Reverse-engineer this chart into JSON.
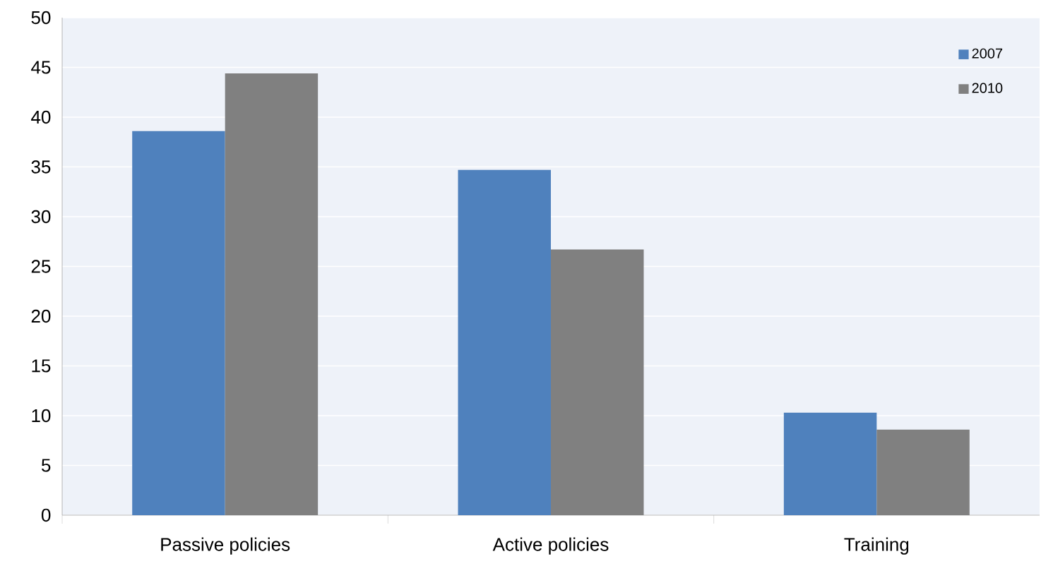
{
  "chart_data": {
    "type": "bar",
    "categories": [
      "Passive policies",
      "Active policies",
      "Training"
    ],
    "series": [
      {
        "name": "2007",
        "color": "#4f81bd",
        "values": [
          38.6,
          34.7,
          10.3
        ]
      },
      {
        "name": "2010",
        "color": "#808080",
        "values": [
          44.4,
          26.7,
          8.6
        ]
      }
    ],
    "ylim": [
      0,
      50
    ],
    "yticks": [
      0,
      5,
      10,
      15,
      20,
      25,
      30,
      35,
      40,
      45,
      50
    ],
    "grid": "y",
    "legend": "top right"
  }
}
